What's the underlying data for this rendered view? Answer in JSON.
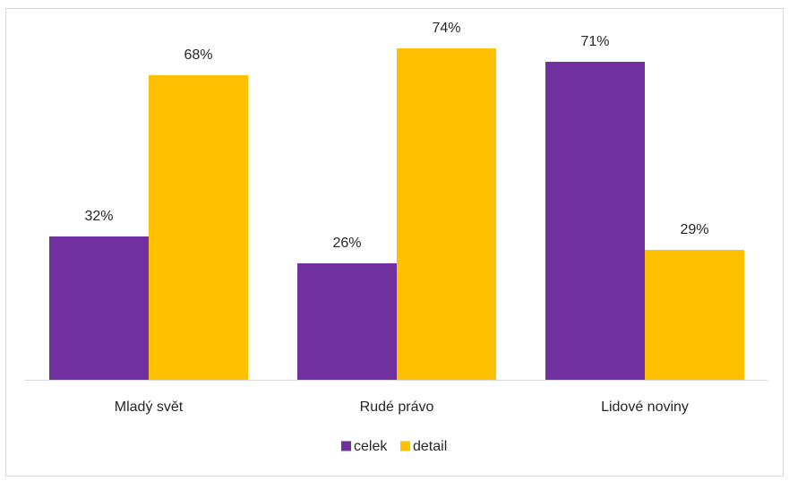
{
  "chart_data": {
    "type": "bar",
    "categories": [
      "Mladý svět",
      "Rudé právo",
      "Lidové noviny"
    ],
    "series": [
      {
        "name": "celek",
        "color": "#7030a0",
        "values": [
          32,
          26,
          71
        ],
        "labels": [
          "32%",
          "26%",
          "71%"
        ]
      },
      {
        "name": "detail",
        "color": "#ffc000",
        "values": [
          68,
          74,
          29
        ],
        "labels": [
          "68%",
          "74%",
          "29%"
        ]
      }
    ],
    "title": "",
    "xlabel": "",
    "ylabel": "",
    "ylim": [
      0,
      80
    ],
    "value_unit": "%",
    "grid": false,
    "legend": "bottom"
  }
}
